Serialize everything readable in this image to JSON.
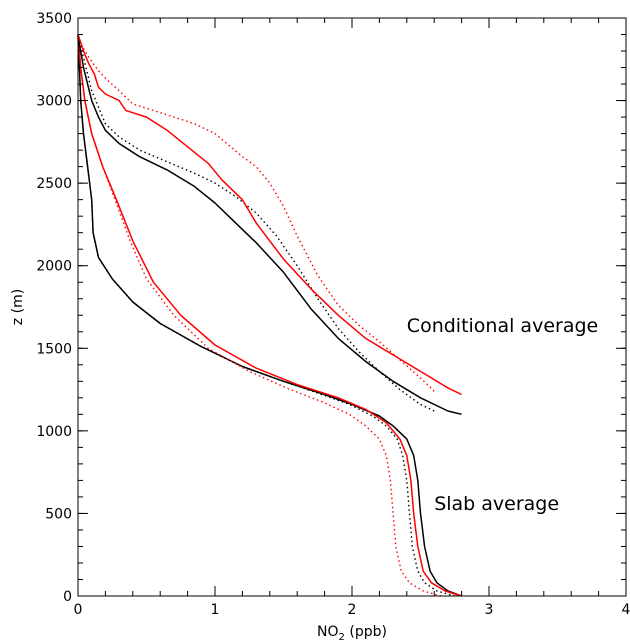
{
  "chart_data": {
    "type": "line",
    "title": "",
    "xlabel": "NO",
    "xlabel_sub": "2",
    "xlabel_unit": " (ppb)",
    "ylabel": "z (m)",
    "xlim": [
      0,
      4
    ],
    "ylim": [
      0,
      3500
    ],
    "x_ticks": [
      0,
      1,
      2,
      3,
      4
    ],
    "x_tick_labels": [
      "0",
      "1",
      "2",
      "3",
      "4"
    ],
    "y_ticks": [
      0,
      500,
      1000,
      1500,
      2000,
      2500,
      3000,
      3500
    ],
    "y_tick_labels": [
      "0",
      "500",
      "1000",
      "1500",
      "2000",
      "2500",
      "3000",
      "3500"
    ],
    "grid": false,
    "legend": "none",
    "annotations": [
      {
        "text": "Conditional average",
        "x": 2.4,
        "y": 1600
      },
      {
        "text": "Slab average",
        "x": 2.6,
        "y": 520
      }
    ],
    "series": [
      {
        "group": "slab",
        "color": "#000000",
        "style": "solid",
        "points": [
          [
            2.8,
            0
          ],
          [
            2.7,
            30
          ],
          [
            2.62,
            80
          ],
          [
            2.57,
            150
          ],
          [
            2.53,
            300
          ],
          [
            2.5,
            500
          ],
          [
            2.48,
            700
          ],
          [
            2.45,
            850
          ],
          [
            2.4,
            950
          ],
          [
            2.3,
            1030
          ],
          [
            2.2,
            1090
          ],
          [
            2.0,
            1160
          ],
          [
            1.8,
            1220
          ],
          [
            1.5,
            1300
          ],
          [
            1.2,
            1390
          ],
          [
            0.9,
            1510
          ],
          [
            0.6,
            1650
          ],
          [
            0.4,
            1780
          ],
          [
            0.25,
            1920
          ],
          [
            0.15,
            2050
          ],
          [
            0.11,
            2200
          ],
          [
            0.1,
            2400
          ],
          [
            0.07,
            2600
          ],
          [
            0.04,
            2800
          ],
          [
            0.02,
            3000
          ],
          [
            0.01,
            3200
          ],
          [
            0.0,
            3400
          ]
        ]
      },
      {
        "group": "slab",
        "color": "#000000",
        "style": "dotted",
        "points": [
          [
            2.75,
            0
          ],
          [
            2.62,
            30
          ],
          [
            2.53,
            80
          ],
          [
            2.48,
            150
          ],
          [
            2.44,
            300
          ],
          [
            2.42,
            500
          ],
          [
            2.4,
            700
          ],
          [
            2.37,
            850
          ],
          [
            2.33,
            950
          ],
          [
            2.25,
            1030
          ],
          [
            2.15,
            1090
          ],
          [
            1.98,
            1160
          ],
          [
            1.78,
            1220
          ],
          [
            1.5,
            1300
          ],
          [
            1.2,
            1390
          ],
          [
            0.9,
            1510
          ],
          [
            0.6,
            1650
          ],
          [
            0.4,
            1780
          ],
          [
            0.25,
            1920
          ],
          [
            0.15,
            2050
          ],
          [
            0.11,
            2200
          ],
          [
            0.1,
            2400
          ],
          [
            0.07,
            2600
          ],
          [
            0.04,
            2800
          ],
          [
            0.02,
            3000
          ],
          [
            0.01,
            3200
          ],
          [
            0.0,
            3400
          ]
        ]
      },
      {
        "group": "slab",
        "color": "#ff0000",
        "style": "solid",
        "points": [
          [
            2.8,
            0
          ],
          [
            2.68,
            30
          ],
          [
            2.58,
            80
          ],
          [
            2.52,
            150
          ],
          [
            2.48,
            300
          ],
          [
            2.45,
            500
          ],
          [
            2.43,
            700
          ],
          [
            2.4,
            850
          ],
          [
            2.35,
            950
          ],
          [
            2.25,
            1050
          ],
          [
            2.1,
            1130
          ],
          [
            1.9,
            1200
          ],
          [
            1.6,
            1280
          ],
          [
            1.3,
            1380
          ],
          [
            1.0,
            1520
          ],
          [
            0.75,
            1700
          ],
          [
            0.55,
            1900
          ],
          [
            0.4,
            2150
          ],
          [
            0.28,
            2400
          ],
          [
            0.18,
            2600
          ],
          [
            0.1,
            2800
          ],
          [
            0.05,
            3000
          ],
          [
            0.02,
            3200
          ],
          [
            0.0,
            3400
          ]
        ]
      },
      {
        "group": "slab",
        "color": "#ff0000",
        "style": "dotted",
        "points": [
          [
            2.65,
            0
          ],
          [
            2.52,
            30
          ],
          [
            2.42,
            80
          ],
          [
            2.36,
            150
          ],
          [
            2.32,
            300
          ],
          [
            2.3,
            500
          ],
          [
            2.28,
            700
          ],
          [
            2.25,
            850
          ],
          [
            2.2,
            950
          ],
          [
            2.1,
            1030
          ],
          [
            1.98,
            1100
          ],
          [
            1.8,
            1170
          ],
          [
            1.55,
            1250
          ],
          [
            1.25,
            1360
          ],
          [
            0.95,
            1500
          ],
          [
            0.7,
            1700
          ],
          [
            0.5,
            1920
          ],
          [
            0.38,
            2150
          ],
          [
            0.27,
            2400
          ],
          [
            0.18,
            2600
          ],
          [
            0.1,
            2800
          ],
          [
            0.05,
            3000
          ],
          [
            0.02,
            3200
          ],
          [
            0.0,
            3400
          ]
        ]
      },
      {
        "group": "conditional",
        "color": "#000000",
        "style": "solid",
        "points": [
          [
            2.8,
            1100
          ],
          [
            2.7,
            1120
          ],
          [
            2.5,
            1200
          ],
          [
            2.3,
            1300
          ],
          [
            2.1,
            1420
          ],
          [
            1.9,
            1560
          ],
          [
            1.7,
            1740
          ],
          [
            1.5,
            1960
          ],
          [
            1.3,
            2140
          ],
          [
            1.15,
            2260
          ],
          [
            1.0,
            2380
          ],
          [
            0.85,
            2480
          ],
          [
            0.65,
            2580
          ],
          [
            0.45,
            2660
          ],
          [
            0.3,
            2740
          ],
          [
            0.2,
            2820
          ],
          [
            0.15,
            2900
          ],
          [
            0.1,
            3000
          ],
          [
            0.07,
            3100
          ],
          [
            0.04,
            3200
          ],
          [
            0.02,
            3300
          ],
          [
            0.0,
            3380
          ]
        ]
      },
      {
        "group": "conditional",
        "color": "#000000",
        "style": "dotted",
        "points": [
          [
            2.6,
            1120
          ],
          [
            2.5,
            1160
          ],
          [
            2.35,
            1250
          ],
          [
            2.2,
            1360
          ],
          [
            2.05,
            1480
          ],
          [
            1.9,
            1620
          ],
          [
            1.75,
            1800
          ],
          [
            1.6,
            2000
          ],
          [
            1.45,
            2180
          ],
          [
            1.3,
            2320
          ],
          [
            1.15,
            2420
          ],
          [
            1.0,
            2500
          ],
          [
            0.85,
            2560
          ],
          [
            0.65,
            2630
          ],
          [
            0.45,
            2700
          ],
          [
            0.3,
            2780
          ],
          [
            0.2,
            2860
          ],
          [
            0.15,
            2960
          ],
          [
            0.1,
            3060
          ],
          [
            0.07,
            3160
          ],
          [
            0.04,
            3260
          ],
          [
            0.02,
            3340
          ],
          [
            0.0,
            3400
          ]
        ]
      },
      {
        "group": "conditional",
        "color": "#ff0000",
        "style": "solid",
        "points": [
          [
            2.8,
            1220
          ],
          [
            2.7,
            1260
          ],
          [
            2.5,
            1360
          ],
          [
            2.3,
            1460
          ],
          [
            2.1,
            1560
          ],
          [
            1.9,
            1700
          ],
          [
            1.7,
            1860
          ],
          [
            1.5,
            2040
          ],
          [
            1.3,
            2260
          ],
          [
            1.2,
            2400
          ],
          [
            1.05,
            2520
          ],
          [
            0.95,
            2620
          ],
          [
            0.8,
            2720
          ],
          [
            0.65,
            2820
          ],
          [
            0.5,
            2900
          ],
          [
            0.35,
            2940
          ],
          [
            0.3,
            3000
          ],
          [
            0.2,
            3040
          ],
          [
            0.15,
            3080
          ],
          [
            0.12,
            3160
          ],
          [
            0.08,
            3220
          ],
          [
            0.04,
            3300
          ],
          [
            0.0,
            3400
          ]
        ]
      },
      {
        "group": "conditional",
        "color": "#ff0000",
        "style": "dotted",
        "points": [
          [
            2.6,
            1240
          ],
          [
            2.5,
            1320
          ],
          [
            2.35,
            1430
          ],
          [
            2.2,
            1540
          ],
          [
            2.05,
            1640
          ],
          [
            1.9,
            1760
          ],
          [
            1.75,
            1940
          ],
          [
            1.6,
            2180
          ],
          [
            1.5,
            2360
          ],
          [
            1.4,
            2500
          ],
          [
            1.3,
            2600
          ],
          [
            1.2,
            2660
          ],
          [
            1.0,
            2800
          ],
          [
            0.85,
            2860
          ],
          [
            0.7,
            2900
          ],
          [
            0.55,
            2940
          ],
          [
            0.4,
            2980
          ],
          [
            0.3,
            3060
          ],
          [
            0.22,
            3120
          ],
          [
            0.15,
            3180
          ],
          [
            0.08,
            3260
          ],
          [
            0.03,
            3330
          ],
          [
            0.0,
            3400
          ]
        ]
      }
    ]
  }
}
